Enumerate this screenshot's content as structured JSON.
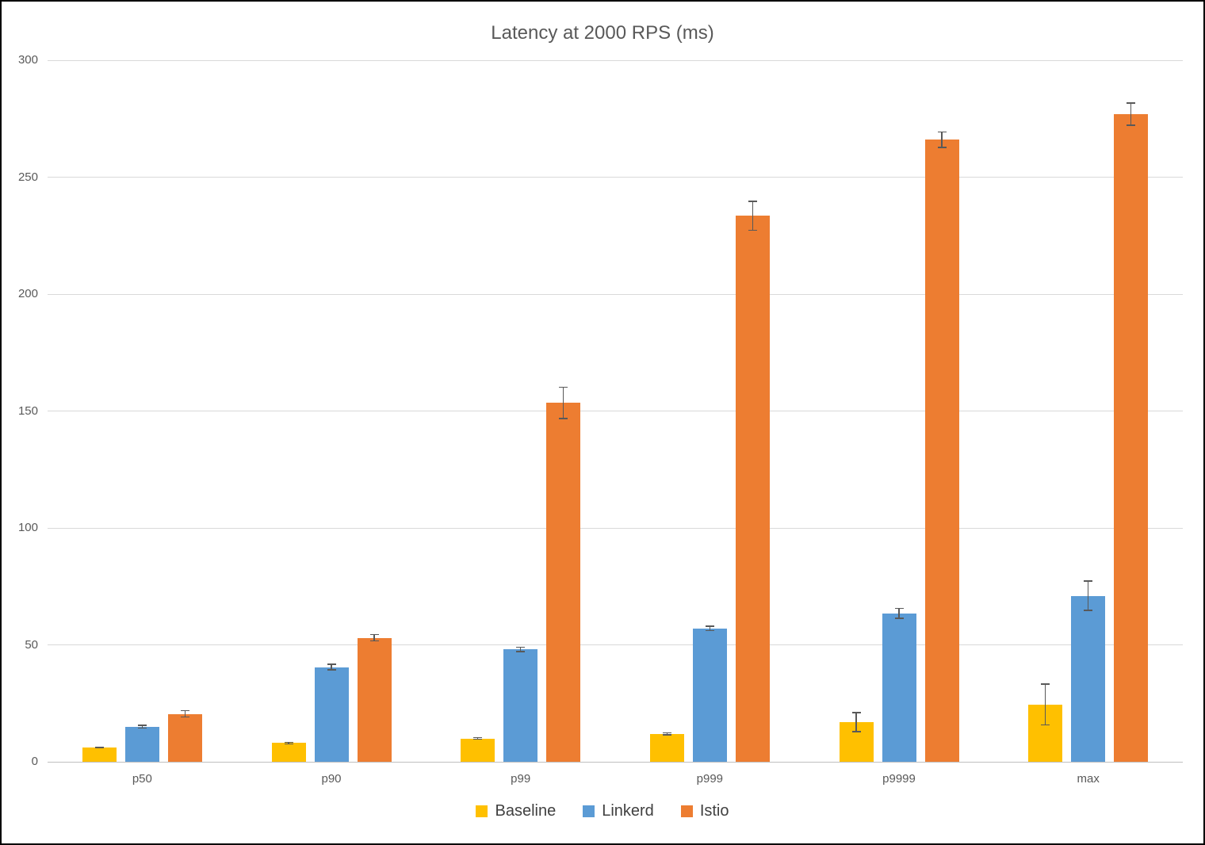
{
  "title": "Latency at 2000 RPS (ms)",
  "chart_data": {
    "type": "bar",
    "title": "Latency at 2000 RPS (ms)",
    "categories": [
      "p50",
      "p90",
      "p99",
      "p999",
      "p9999",
      "max"
    ],
    "series": [
      {
        "name": "Baseline",
        "color": "#FFC000",
        "values": [
          6,
          8,
          10,
          12,
          17,
          24.5
        ],
        "errors": [
          0.4,
          0.6,
          0.6,
          0.7,
          4.3,
          9
        ]
      },
      {
        "name": "Linkerd",
        "color": "#5B9BD5",
        "values": [
          15,
          40.5,
          48,
          57,
          63.5,
          71
        ],
        "errors": [
          0.8,
          1.5,
          1.2,
          1.2,
          2.4,
          6.5
        ]
      },
      {
        "name": "Istio",
        "color": "#ED7D31",
        "values": [
          20.5,
          53,
          153.5,
          233.5,
          266,
          277
        ],
        "errors": [
          1.6,
          1.6,
          7,
          6.5,
          3.5,
          5
        ]
      }
    ],
    "xlabel": "",
    "ylabel": "",
    "ylim": [
      0,
      300
    ],
    "y_ticks": [
      0,
      50,
      100,
      150,
      200,
      250,
      300
    ],
    "grid": true,
    "error_bars": true,
    "legend_position": "bottom"
  },
  "colors": {
    "baseline": "#FFC000",
    "linkerd": "#5B9BD5",
    "istio": "#ED7D31",
    "gridline": "#D9D9D9",
    "axis_text": "#595959",
    "error_bar": "#595959"
  }
}
